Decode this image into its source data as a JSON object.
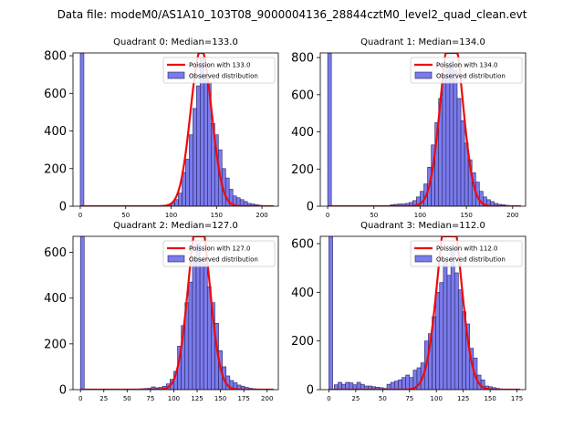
{
  "chart_data": {
    "title": "Data file: modeM0/AS1A10_103T08_9000004136_28844cztM0_level2_quad_clean.evt",
    "panels": [
      {
        "type": "bar",
        "title": "Quadrant 0: Median=133.0",
        "median": 133.0,
        "xlim": [
          -8,
          218
        ],
        "ylim": [
          0,
          815
        ],
        "xticks": [
          0,
          50,
          100,
          150,
          200
        ],
        "yticks": [
          0,
          200,
          400,
          600,
          800
        ],
        "bin_width": 4,
        "zero_bin_value": 815,
        "bins": [
          [
            52,
            2
          ],
          [
            56,
            1
          ],
          [
            60,
            0
          ],
          [
            64,
            1
          ],
          [
            68,
            1
          ],
          [
            72,
            2
          ],
          [
            76,
            2
          ],
          [
            80,
            2
          ],
          [
            84,
            3
          ],
          [
            88,
            4
          ],
          [
            92,
            6
          ],
          [
            96,
            10
          ],
          [
            100,
            18
          ],
          [
            104,
            35
          ],
          [
            108,
            70
          ],
          [
            112,
            180
          ],
          [
            116,
            250
          ],
          [
            120,
            380
          ],
          [
            124,
            520
          ],
          [
            128,
            640
          ],
          [
            132,
            790
          ],
          [
            136,
            700
          ],
          [
            140,
            660
          ],
          [
            144,
            440
          ],
          [
            148,
            380
          ],
          [
            152,
            300
          ],
          [
            156,
            200
          ],
          [
            160,
            150
          ],
          [
            164,
            90
          ],
          [
            168,
            55
          ],
          [
            172,
            45
          ],
          [
            176,
            35
          ],
          [
            180,
            25
          ],
          [
            184,
            15
          ],
          [
            188,
            12
          ],
          [
            192,
            8
          ],
          [
            196,
            5
          ],
          [
            200,
            3
          ],
          [
            204,
            2
          ],
          [
            208,
            1
          ]
        ],
        "fit_mean": 133.0,
        "legend": {
          "fit": "Poission with 133.0",
          "observed": "Observed distribution"
        }
      },
      {
        "type": "bar",
        "title": "Quadrant 1: Median=134.0",
        "median": 134.0,
        "xlim": [
          -8,
          214
        ],
        "ylim": [
          0,
          825
        ],
        "xticks": [
          0,
          50,
          100,
          150,
          200
        ],
        "yticks": [
          0,
          200,
          400,
          600,
          800
        ],
        "bin_width": 4,
        "zero_bin_value": 825,
        "bins": [
          [
            56,
            2
          ],
          [
            60,
            3
          ],
          [
            64,
            4
          ],
          [
            68,
            8
          ],
          [
            72,
            10
          ],
          [
            76,
            12
          ],
          [
            80,
            12
          ],
          [
            84,
            15
          ],
          [
            88,
            20
          ],
          [
            92,
            30
          ],
          [
            96,
            50
          ],
          [
            100,
            80
          ],
          [
            104,
            120
          ],
          [
            108,
            210
          ],
          [
            112,
            330
          ],
          [
            116,
            450
          ],
          [
            120,
            580
          ],
          [
            124,
            690
          ],
          [
            128,
            760
          ],
          [
            132,
            780
          ],
          [
            136,
            730
          ],
          [
            140,
            580
          ],
          [
            144,
            460
          ],
          [
            148,
            340
          ],
          [
            152,
            250
          ],
          [
            156,
            180
          ],
          [
            160,
            130
          ],
          [
            164,
            80
          ],
          [
            168,
            50
          ],
          [
            172,
            35
          ],
          [
            176,
            25
          ],
          [
            180,
            15
          ],
          [
            184,
            10
          ],
          [
            188,
            8
          ],
          [
            192,
            5
          ],
          [
            196,
            3
          ],
          [
            200,
            2
          ]
        ],
        "fit_mean": 134.0,
        "legend": {
          "fit": "Poission with 134.0",
          "observed": "Observed distribution"
        }
      },
      {
        "type": "bar",
        "title": "Quadrant 2: Median=127.0",
        "median": 127.0,
        "xlim": [
          -8,
          212
        ],
        "ylim": [
          0,
          670
        ],
        "xticks": [
          0,
          25,
          50,
          75,
          100,
          125,
          150,
          175,
          200
        ],
        "yticks": [
          0,
          200,
          400,
          600
        ],
        "bin_width": 4,
        "zero_bin_value": 670,
        "bins": [
          [
            28,
            1
          ],
          [
            32,
            1
          ],
          [
            36,
            1
          ],
          [
            40,
            1
          ],
          [
            44,
            2
          ],
          [
            48,
            2
          ],
          [
            52,
            2
          ],
          [
            56,
            3
          ],
          [
            60,
            3
          ],
          [
            64,
            4
          ],
          [
            68,
            5
          ],
          [
            72,
            6
          ],
          [
            76,
            12
          ],
          [
            80,
            8
          ],
          [
            84,
            10
          ],
          [
            88,
            15
          ],
          [
            92,
            25
          ],
          [
            96,
            45
          ],
          [
            100,
            80
          ],
          [
            104,
            190
          ],
          [
            108,
            280
          ],
          [
            112,
            380
          ],
          [
            116,
            470
          ],
          [
            120,
            560
          ],
          [
            124,
            640
          ],
          [
            128,
            570
          ],
          [
            132,
            550
          ],
          [
            136,
            450
          ],
          [
            140,
            380
          ],
          [
            144,
            290
          ],
          [
            148,
            170
          ],
          [
            152,
            100
          ],
          [
            156,
            60
          ],
          [
            160,
            40
          ],
          [
            164,
            30
          ],
          [
            168,
            20
          ],
          [
            172,
            15
          ],
          [
            176,
            10
          ],
          [
            180,
            6
          ],
          [
            184,
            4
          ],
          [
            188,
            3
          ],
          [
            192,
            2
          ],
          [
            196,
            1
          ],
          [
            200,
            1
          ]
        ],
        "fit_mean": 127.0,
        "legend": {
          "fit": "Poission with 127.0",
          "observed": "Observed distribution"
        }
      },
      {
        "type": "bar",
        "title": "Quadrant 3: Median=112.0",
        "median": 112.0,
        "xlim": [
          -8,
          183
        ],
        "ylim": [
          0,
          630
        ],
        "xticks": [
          0,
          25,
          50,
          75,
          100,
          125,
          150,
          175
        ],
        "yticks": [
          0,
          200,
          400,
          600
        ],
        "bin_width": 3.5,
        "zero_bin_value": 630,
        "bins": [
          [
            5,
            20
          ],
          [
            8.5,
            30
          ],
          [
            12,
            22
          ],
          [
            15.5,
            30
          ],
          [
            19,
            28
          ],
          [
            22.5,
            20
          ],
          [
            26,
            30
          ],
          [
            29.5,
            22
          ],
          [
            33,
            15
          ],
          [
            36.5,
            15
          ],
          [
            40,
            12
          ],
          [
            43.5,
            10
          ],
          [
            47,
            8
          ],
          [
            50.5,
            5
          ],
          [
            54,
            22
          ],
          [
            57.5,
            30
          ],
          [
            61,
            35
          ],
          [
            64.5,
            40
          ],
          [
            68,
            50
          ],
          [
            71.5,
            60
          ],
          [
            75,
            50
          ],
          [
            78.5,
            80
          ],
          [
            82,
            90
          ],
          [
            85.5,
            110
          ],
          [
            89,
            200
          ],
          [
            92.5,
            230
          ],
          [
            96,
            300
          ],
          [
            99.5,
            400
          ],
          [
            103,
            440
          ],
          [
            106.5,
            530
          ],
          [
            110,
            470
          ],
          [
            113.5,
            580
          ],
          [
            117,
            480
          ],
          [
            120.5,
            410
          ],
          [
            124,
            320
          ],
          [
            127.5,
            270
          ],
          [
            131,
            170
          ],
          [
            134.5,
            130
          ],
          [
            138,
            60
          ],
          [
            141.5,
            40
          ],
          [
            145,
            15
          ],
          [
            148.5,
            12
          ],
          [
            152,
            8
          ],
          [
            155.5,
            5
          ],
          [
            159,
            3
          ],
          [
            162.5,
            2
          ]
        ],
        "fit_mean": 112.0,
        "legend": {
          "fit": "Poission with 112.0",
          "observed": "Observed distribution"
        }
      }
    ]
  }
}
